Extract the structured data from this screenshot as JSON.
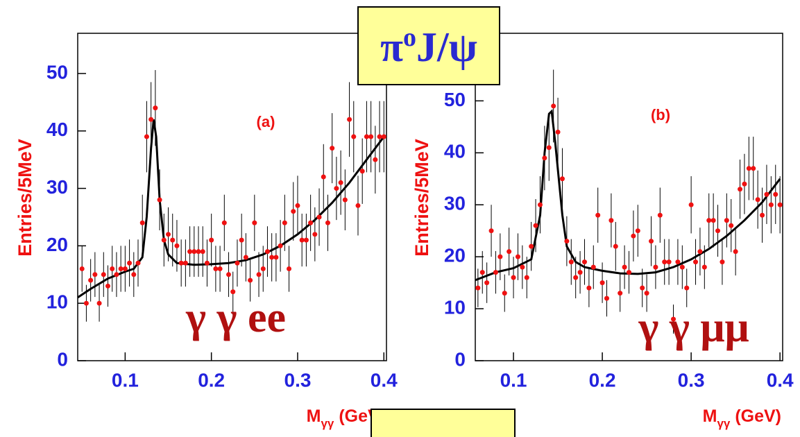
{
  "title": [
    "π",
    "o",
    "J/ψ"
  ],
  "chart_data": [
    {
      "type": "errorbar",
      "panel_label": "(a)",
      "channel_label": "γ γ ee",
      "y_label": "Entries/5MeV",
      "x_label": [
        "M",
        "γγ",
        " (GeV)"
      ],
      "xlim": [
        0.045,
        0.403
      ],
      "ylim": [
        0,
        57
      ],
      "xticks": [
        0.1,
        0.2,
        0.3,
        0.4
      ],
      "yticks": [
        0,
        10,
        20,
        30,
        40,
        50
      ],
      "points": {
        "color": "#ee1111",
        "x": [
          0.05,
          0.055,
          0.06,
          0.065,
          0.07,
          0.075,
          0.08,
          0.085,
          0.09,
          0.095,
          0.1,
          0.105,
          0.11,
          0.115,
          0.12,
          0.125,
          0.13,
          0.135,
          0.14,
          0.145,
          0.15,
          0.155,
          0.16,
          0.165,
          0.17,
          0.175,
          0.18,
          0.185,
          0.19,
          0.195,
          0.2,
          0.205,
          0.21,
          0.215,
          0.22,
          0.225,
          0.23,
          0.235,
          0.24,
          0.245,
          0.25,
          0.255,
          0.26,
          0.265,
          0.27,
          0.275,
          0.28,
          0.285,
          0.29,
          0.295,
          0.3,
          0.305,
          0.31,
          0.315,
          0.32,
          0.325,
          0.33,
          0.335,
          0.34,
          0.345,
          0.35,
          0.355,
          0.36,
          0.365,
          0.37,
          0.375,
          0.38,
          0.385,
          0.39,
          0.395,
          0.4
        ],
        "values": [
          16,
          10,
          14,
          15,
          10,
          15,
          13,
          16,
          15,
          16,
          16,
          17,
          15,
          17,
          24,
          39,
          42,
          44,
          28,
          21,
          22,
          21,
          20,
          17,
          17,
          19,
          19,
          19,
          19,
          17,
          21,
          16,
          16,
          24,
          15,
          12,
          17,
          21,
          18,
          14,
          24,
          15,
          16,
          19,
          18,
          18,
          20,
          24,
          16,
          26,
          27,
          21,
          21,
          24,
          22,
          25,
          32,
          24,
          37,
          30,
          31,
          28,
          42,
          39,
          27,
          33,
          39,
          39,
          35,
          39,
          39
        ],
        "errors": [
          4,
          3.2,
          3.7,
          3.9,
          3.2,
          3.9,
          3.6,
          4,
          3.9,
          4,
          4,
          4.1,
          3.9,
          4.1,
          4.9,
          6.2,
          6.5,
          6.6,
          5.3,
          4.6,
          4.7,
          4.6,
          4.5,
          4.1,
          4.1,
          4.4,
          4.4,
          4.4,
          4.4,
          4.1,
          4.6,
          4,
          4,
          4.9,
          3.9,
          3.5,
          4.1,
          4.6,
          4.2,
          3.7,
          4.9,
          3.9,
          4,
          4.4,
          4.2,
          4.2,
          4.5,
          4.9,
          4,
          5.1,
          5.2,
          4.6,
          4.6,
          4.9,
          4.7,
          5,
          5.7,
          4.9,
          6.1,
          5.5,
          5.6,
          5.3,
          6.5,
          6.2,
          5.2,
          5.7,
          6.2,
          6.2,
          5.9,
          6.2,
          6.2
        ]
      },
      "fit": {
        "color": "#000000",
        "x": [
          0.045,
          0.06,
          0.08,
          0.1,
          0.11,
          0.12,
          0.125,
          0.13,
          0.133,
          0.136,
          0.14,
          0.145,
          0.15,
          0.16,
          0.18,
          0.2,
          0.22,
          0.24,
          0.26,
          0.28,
          0.3,
          0.32,
          0.34,
          0.36,
          0.38,
          0.4
        ],
        "values": [
          11,
          12.5,
          14.3,
          15.5,
          16,
          18,
          25,
          37,
          42,
          39,
          28,
          21,
          18.5,
          17,
          16.7,
          16.8,
          17,
          17.5,
          18.5,
          20,
          22,
          24.5,
          27.5,
          31,
          35,
          39
        ]
      }
    },
    {
      "type": "errorbar",
      "panel_label": "(b)",
      "channel_label": "γ γ μμ",
      "y_label": "Entries/5MeV",
      "x_label": [
        "M",
        "γγ",
        " (GeV)"
      ],
      "xlim": [
        0.057,
        0.403
      ],
      "ylim": [
        0,
        63
      ],
      "xticks": [
        0.1,
        0.2,
        0.3,
        0.4
      ],
      "yticks": [
        0,
        10,
        20,
        30,
        40,
        50
      ],
      "points": {
        "color": "#ee1111",
        "x": [
          0.06,
          0.065,
          0.07,
          0.075,
          0.08,
          0.085,
          0.09,
          0.095,
          0.1,
          0.105,
          0.11,
          0.115,
          0.12,
          0.125,
          0.13,
          0.135,
          0.14,
          0.145,
          0.15,
          0.155,
          0.16,
          0.165,
          0.17,
          0.175,
          0.18,
          0.185,
          0.19,
          0.195,
          0.2,
          0.205,
          0.21,
          0.215,
          0.22,
          0.225,
          0.23,
          0.235,
          0.24,
          0.245,
          0.25,
          0.255,
          0.26,
          0.265,
          0.27,
          0.275,
          0.28,
          0.285,
          0.29,
          0.295,
          0.3,
          0.305,
          0.31,
          0.315,
          0.32,
          0.325,
          0.33,
          0.335,
          0.34,
          0.345,
          0.35,
          0.355,
          0.36,
          0.365,
          0.37,
          0.375,
          0.38,
          0.385,
          0.39,
          0.395,
          0.4
        ],
        "values": [
          14,
          17,
          15,
          25,
          17,
          20,
          13,
          21,
          16,
          20,
          18,
          16,
          22,
          26,
          30,
          39,
          41,
          49,
          44,
          35,
          23,
          19,
          16,
          17,
          19,
          14,
          18,
          28,
          15,
          12,
          27,
          22,
          13,
          18,
          17,
          24,
          25,
          14,
          13,
          23,
          18,
          28,
          19,
          19,
          8,
          19,
          18,
          14,
          30,
          19,
          21,
          18,
          27,
          27,
          25,
          19,
          27,
          26,
          21,
          33,
          34,
          37,
          37,
          31,
          28,
          32,
          30,
          32,
          30
        ],
        "errors": [
          3.7,
          4.1,
          3.9,
          5,
          4.1,
          4.5,
          3.6,
          4.6,
          4,
          4.5,
          4.2,
          4,
          4.7,
          5.1,
          5.5,
          6.2,
          6.4,
          7,
          6.6,
          5.9,
          4.8,
          4.4,
          4,
          4.1,
          4.4,
          3.7,
          4.2,
          5.3,
          3.9,
          3.5,
          5.2,
          4.7,
          3.6,
          4.2,
          4.1,
          4.9,
          5,
          3.7,
          3.6,
          4.8,
          4.2,
          5.3,
          4.4,
          4.4,
          2.8,
          4.4,
          4.2,
          3.7,
          5.5,
          4.4,
          4.6,
          4.2,
          5.2,
          5.2,
          5,
          4.4,
          5.2,
          5.1,
          4.6,
          5.7,
          5.8,
          6.1,
          6.1,
          5.6,
          5.3,
          5.7,
          5.5,
          5.7,
          5.5
        ]
      },
      "fit": {
        "color": "#000000",
        "x": [
          0.057,
          0.08,
          0.1,
          0.12,
          0.13,
          0.135,
          0.14,
          0.143,
          0.147,
          0.155,
          0.16,
          0.17,
          0.18,
          0.2,
          0.22,
          0.24,
          0.26,
          0.28,
          0.3,
          0.32,
          0.34,
          0.36,
          0.38,
          0.4
        ],
        "values": [
          15.5,
          17,
          17.8,
          19.5,
          28,
          40,
          47.5,
          48,
          42,
          28,
          22,
          19,
          18,
          17.3,
          16.8,
          16.7,
          17,
          18,
          19.5,
          21.5,
          24,
          27,
          30.5,
          35
        ]
      }
    }
  ]
}
